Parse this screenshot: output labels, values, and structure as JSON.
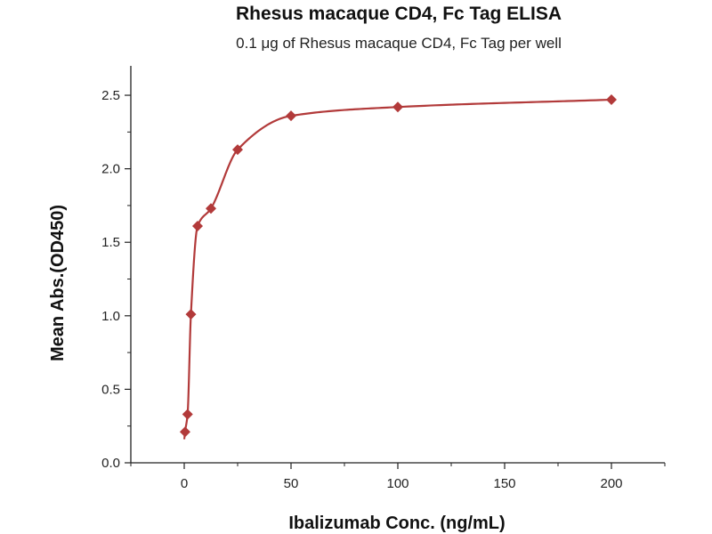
{
  "chart_data": {
    "type": "scatter",
    "title": "Rhesus macaque CD4, Fc Tag ELISA",
    "subtitle": "0.1 μg of Rhesus macaque CD4, Fc Tag per well",
    "xlabel": "Ibalizumab Conc. (ng/mL)",
    "ylabel": "Mean Abs.(OD450)",
    "xlim": [
      -25,
      225
    ],
    "ylim": [
      0,
      2.7
    ],
    "x_ticks": [
      0,
      50,
      100,
      150,
      200
    ],
    "x_tick_labels": [
      "0",
      "50",
      "100",
      "150",
      "200"
    ],
    "y_ticks": [
      0.0,
      0.5,
      1.0,
      1.5,
      2.0,
      2.5
    ],
    "y_tick_labels": [
      "0.0",
      "0.5",
      "1.0",
      "1.5",
      "2.0",
      "2.5"
    ],
    "grid": false,
    "legend": false,
    "series": [
      {
        "x": [
          0.39,
          1.56,
          3.13,
          6.25,
          12.5,
          25,
          50,
          100,
          200
        ],
        "y": [
          0.21,
          0.33,
          1.01,
          1.61,
          1.73,
          2.13,
          2.36,
          2.42,
          2.47
        ],
        "color": "#b23a3a",
        "marker": "diamond",
        "fit": "four-parameter logistic curve"
      }
    ]
  }
}
